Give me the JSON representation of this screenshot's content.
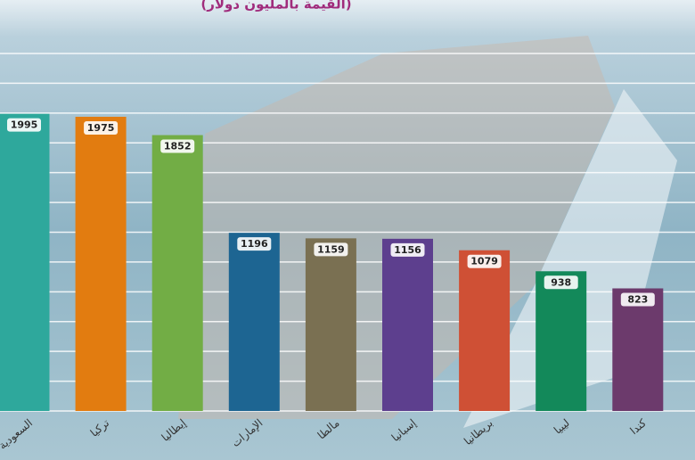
{
  "chart_data": {
    "type": "bar",
    "title": "(القيمة بالمليون دولار)",
    "categories": [
      "السعودية",
      "تركيا",
      "إيطاليا",
      "الإمارات",
      "مالطا",
      "إسبانيا",
      "بريطانيا",
      "ليبيا",
      "كندا"
    ],
    "values": [
      1995,
      1975,
      1852,
      1196,
      1159,
      1156,
      1079,
      938,
      823
    ],
    "colors": [
      "#2ea89c",
      "#e27c10",
      "#72ad45",
      "#1d6592",
      "#7a7052",
      "#5d3f8e",
      "#cf5035",
      "#13895a",
      "#6c3a6c"
    ],
    "ylim": [
      0,
      2400
    ],
    "yticks": [
      0,
      200,
      400,
      600,
      800,
      1000,
      1200,
      1400,
      1600,
      1800,
      2000,
      2200,
      2400
    ],
    "grid": true
  }
}
